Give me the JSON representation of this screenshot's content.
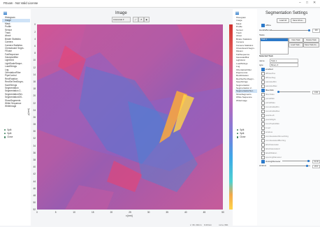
{
  "window": {
    "title": "FExam - Not Valid License",
    "min": "–",
    "max": "□",
    "close": "✕"
  },
  "left_nav": {
    "items": [
      "Histogram",
      "Image",
      "Mask",
      "Profile",
      "Sensor",
      "Track",
      "About",
      "Binder Statistics",
      "Camera",
      "Camera Statistics",
      "Chessboard Segm..",
      "FExam",
      "FabSequence",
      "GaussianBlur",
      "LightGrid",
      "LightScaleSeque..",
      "LoadStrings",
      "Log",
      "OrientationFilter",
      "PipeControl",
      "RectRotation",
      "RectSetTextSegm..",
      "SaveStrings",
      "Segmentation",
      "Segmentation 2..",
      "SegmentationSet..",
      "SegmentationDS..",
      "ShowSegments",
      "White Sequence",
      "WriteImage"
    ],
    "selected_index": 1,
    "links": [
      "Split",
      "Split",
      "Close"
    ]
  },
  "image_panel": {
    "title": "Image",
    "toolbar": {
      "dropdown": "Autoscale",
      "btn1": "⤢",
      "btn2": "↺",
      "btn3": "▶"
    },
    "y_ticks": [
      "0",
      "2",
      "4",
      "6",
      "8",
      "10",
      "12",
      "14",
      "16",
      "18",
      "20",
      "22",
      "24",
      "26",
      "28",
      "30",
      "32",
      "34",
      "36",
      "38",
      "40",
      "42",
      "44",
      "46",
      "48",
      "50",
      "52"
    ],
    "y_label": "y [mm]",
    "x_ticks": [
      "0",
      "5",
      "10",
      "15",
      "20",
      "25",
      "30",
      "35",
      "40",
      "45",
      "50"
    ],
    "x_label": "x [mm]",
    "colorbar_ticks": [
      "90",
      "80",
      "70",
      "60",
      "50",
      "40",
      "30",
      "20",
      "10",
      "0",
      "-10",
      "-20",
      "-30",
      "-40",
      "-50",
      "-60",
      "-70",
      "-80",
      "-90"
    ],
    "status_left": "x: 3b: 23mm",
    "status_mid": "0.23mm",
    "status_right": "n.d.a. 0bb"
  },
  "right_nav": {
    "items": [
      "Histogram",
      "Image",
      "Mask",
      "Profile",
      "Sensor",
      "Track",
      "About",
      "Binder Statistics",
      "Camera",
      "Camera Statistics",
      "Chessboard Segm..",
      "FExam",
      "FabSequence",
      "GaussianBlur",
      "LightGrid",
      "LoadStrings",
      "Log",
      "OrientationFilter",
      "PipeControl",
      "RectRotation",
      "RectSetTextSegm..",
      "SaveStrings",
      "Segmentation",
      "Segmentation 2..",
      "SegmentationSet..",
      "ShowSegments",
      "White Sequence",
      "WriteImage"
    ],
    "selected_index": 24,
    "links": [
      "Split",
      "Split",
      "Close"
    ]
  },
  "settings": {
    "title": "Segmentation Settings",
    "load_all": "Load All",
    "save_all": "Save All as...",
    "offline_label": "offline",
    "handle_label": "HandleBound",
    "handle_value": "100",
    "tasks_label": "Tasks",
    "tasks_selected": "Task 1",
    "new_task": "New Task",
    "delete_task": "Delete Task",
    "load_task": "Load Task...",
    "save_task": "Save Task As...",
    "selected_task_label": "Selected Task",
    "name_label": "name",
    "name_value": "Task 1",
    "type_label": "type",
    "type_value": "Binary",
    "checkboxes": [
      {
        "label": "enabled",
        "on": true
      },
      {
        "label": "diffusePos",
        "on": false
      },
      {
        "label": "diffuseNeg",
        "on": false
      },
      {
        "label": "saturateMin",
        "on": false
      },
      {
        "label": "saturateMax",
        "on": false
      },
      {
        "label": "filterxMin",
        "on": true
      },
      {
        "label": "filterxMax",
        "on": false
      },
      {
        "label": "pshubMin",
        "on": false
      },
      {
        "label": "pshubMax",
        "on": false
      },
      {
        "label": "zeroshuttleMin",
        "on": false
      },
      {
        "label": "zeroshuttleMax",
        "on": false
      },
      {
        "label": "pearsLeft",
        "on": false
      },
      {
        "label": "pearsRight",
        "on": false
      },
      {
        "label": "zeroPredictMin",
        "on": false
      },
      {
        "label": "invert",
        "on": false
      },
      {
        "label": "window",
        "on": false
      },
      {
        "label": "zeroGaussianSmoothing",
        "on": false
      },
      {
        "label": "zeroGaussianBlurring",
        "on": false
      },
      {
        "label": "labelGaussian",
        "on": false
      },
      {
        "label": "labelGaussian2",
        "on": false
      },
      {
        "label": "labelDilation",
        "on": false
      },
      {
        "label": "openingDiameter",
        "on": false
      },
      {
        "label": "closingDiameter",
        "on": true
      }
    ],
    "filterx_value": "0.00",
    "closing_value": "31.00",
    "bottom_label": "window",
    "bottom_value": "23.0"
  }
}
